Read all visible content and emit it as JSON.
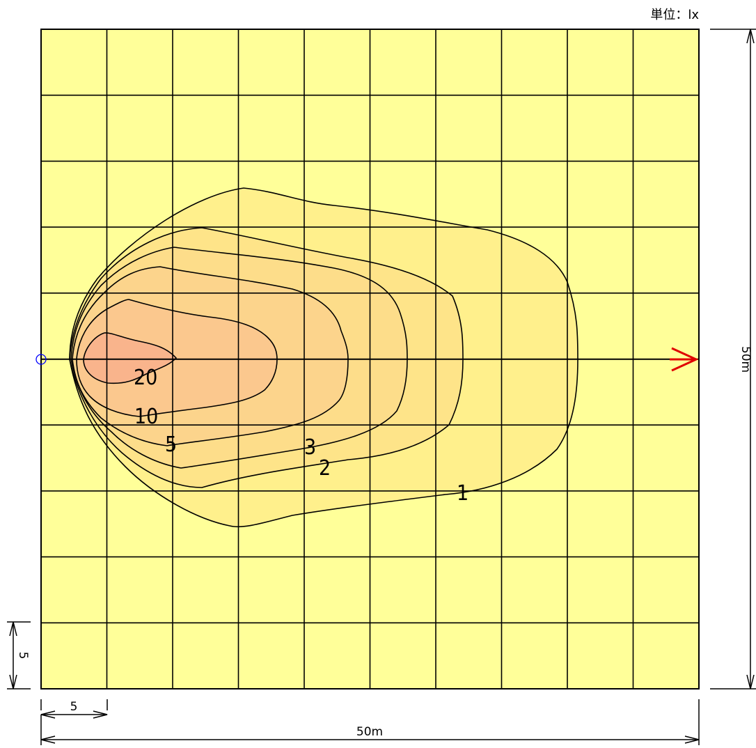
{
  "unit_label": "単位：lx",
  "contour_labels": {
    "c20": "20",
    "c10": "10",
    "c5": "5",
    "c3": "3",
    "c2": "2",
    "c1": "1"
  },
  "dimensions": {
    "total_width": "50m",
    "total_height": "50m",
    "grid_width": "5",
    "grid_height": "5"
  },
  "colors": {
    "background": "#FFFF99",
    "zone_1": "#FFF08C",
    "zone_2": "#FEE489",
    "zone_3": "#FDDD8A",
    "zone_5": "#FCD48C",
    "zone_10": "#FBC88E",
    "zone_20": "#F9B48C",
    "direction_arrow": "#E00000",
    "origin_marker": "#0000FF"
  },
  "chart_data": {
    "type": "contour",
    "unit": "lx",
    "area_m": [
      50,
      50
    ],
    "grid_spacing_m": 5,
    "isolux_levels": [
      1,
      2,
      3,
      5,
      10,
      20
    ]
  }
}
